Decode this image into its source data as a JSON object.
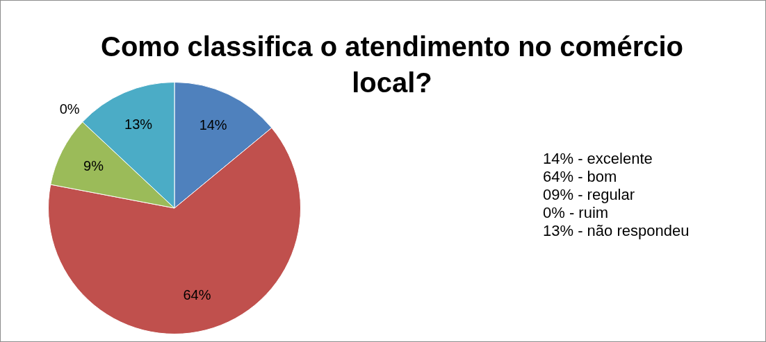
{
  "chart_data": {
    "type": "pie",
    "title": "Como classifica o atendimento no comércio local?",
    "categories": [
      null,
      null,
      null,
      null,
      null
    ],
    "values": [
      14,
      64,
      9,
      0,
      13
    ],
    "colors": [
      "#4f81bd",
      "#c0504d",
      "#9bbb59",
      "#8064a2",
      "#4bacc6"
    ],
    "value_labels": [
      "14%",
      "64%",
      "9%",
      "0%",
      "13%"
    ],
    "annotations": [
      "14% - excelente",
      "64% - bom",
      "09% - regular",
      "0% - ruim",
      "13% - não respondeu"
    ]
  }
}
